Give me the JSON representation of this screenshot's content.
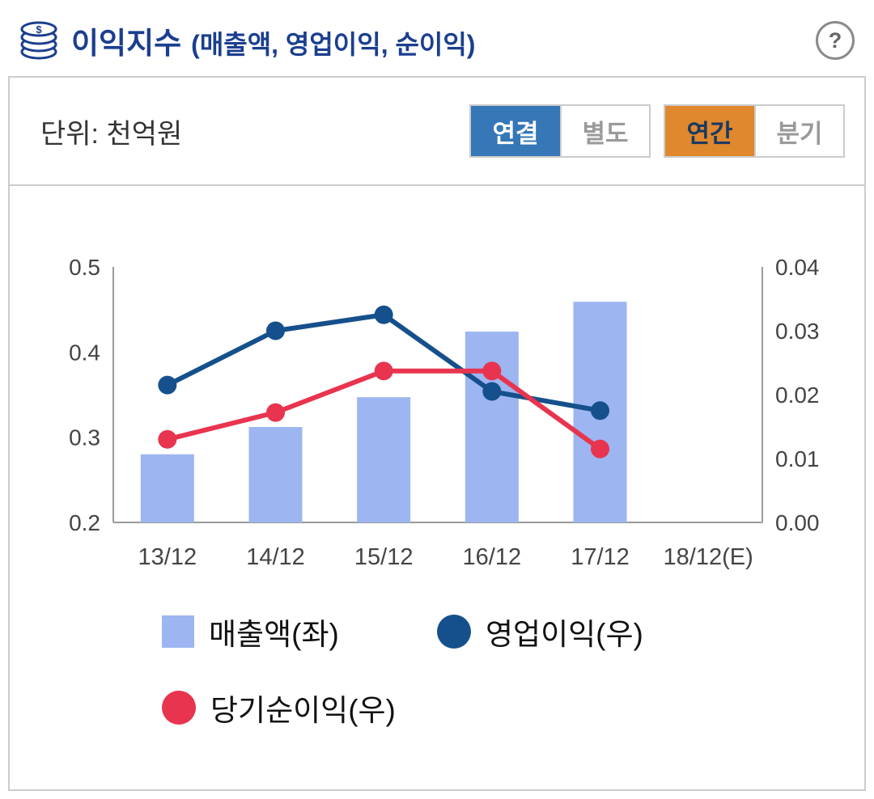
{
  "header": {
    "title": "이익지수",
    "subtitle": "(매출액, 영업이익, 순이익)",
    "help_icon": "?",
    "title_color": "#1b3e8f"
  },
  "panel": {
    "unit_label": "단위: 천억원",
    "toggles": {
      "consolidated": "연결",
      "separate": "별도",
      "annual": "연간",
      "quarterly": "분기",
      "active_blue_color": "#3577b7",
      "active_orange_color": "#e0882d"
    }
  },
  "chart_data": {
    "type": "bar+line",
    "categories": [
      "13/12",
      "14/12",
      "15/12",
      "16/12",
      "17/12",
      "18/12(E)"
    ],
    "left_axis": {
      "min": 0.2,
      "max": 0.5,
      "ticks": [
        {
          "v": 0.5,
          "label": "0.5"
        },
        {
          "v": 0.4,
          "label": "0.4"
        },
        {
          "v": 0.3,
          "label": "0.3"
        },
        {
          "v": 0.2,
          "label": "0.2"
        }
      ]
    },
    "right_axis": {
      "min": 0.0,
      "max": 0.04,
      "ticks": [
        {
          "v": 0.04,
          "label": "0.04"
        },
        {
          "v": 0.03,
          "label": "0.03"
        },
        {
          "v": 0.02,
          "label": "0.02"
        },
        {
          "v": 0.01,
          "label": "0.01"
        },
        {
          "v": 0.0,
          "label": "0.00"
        }
      ]
    },
    "series": [
      {
        "name": "매출액(좌)",
        "type": "bar",
        "axis": "left",
        "color": "#9db5f1",
        "values": [
          0.28,
          0.312,
          0.347,
          0.424,
          0.459,
          null
        ]
      },
      {
        "name": "영업이익(우)",
        "type": "line",
        "axis": "right",
        "color": "#15508c",
        "values": [
          0.0215,
          0.03,
          0.0325,
          0.0205,
          0.0175,
          null
        ]
      },
      {
        "name": "당기순이익(우)",
        "type": "line",
        "axis": "right",
        "color": "#e8344e",
        "values": [
          0.013,
          0.0172,
          0.0237,
          0.0237,
          0.0115,
          null
        ]
      }
    ],
    "legend_position": "bottom",
    "axis_line_color": "#9a9a9a",
    "tick_text_color": "#444"
  }
}
